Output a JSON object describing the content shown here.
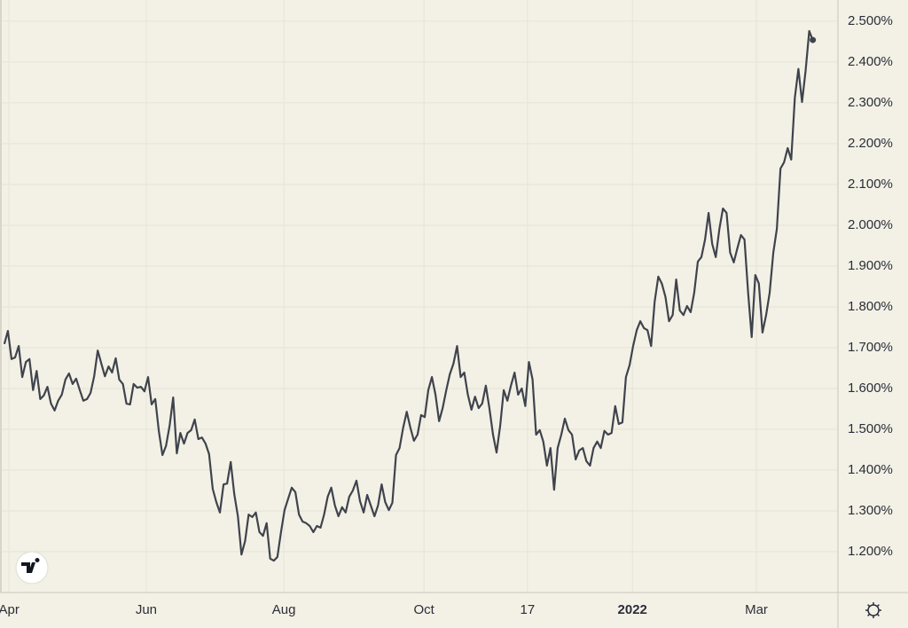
{
  "chart_data": {
    "type": "line",
    "series": [
      {
        "color": "#3f434d",
        "values": [
          1.709,
          1.741,
          1.672,
          1.676,
          1.704,
          1.628,
          1.665,
          1.672,
          1.596,
          1.643,
          1.574,
          1.583,
          1.604,
          1.563,
          1.546,
          1.57,
          1.585,
          1.622,
          1.637,
          1.611,
          1.624,
          1.596,
          1.57,
          1.574,
          1.589,
          1.63,
          1.693,
          1.661,
          1.63,
          1.654,
          1.639,
          1.674,
          1.622,
          1.611,
          1.563,
          1.561,
          1.611,
          1.602,
          1.604,
          1.593,
          1.628,
          1.561,
          1.574,
          1.496,
          1.437,
          1.459,
          1.509,
          1.578,
          1.441,
          1.491,
          1.465,
          1.491,
          1.498,
          1.524,
          1.476,
          1.48,
          1.465,
          1.439,
          1.354,
          1.322,
          1.296,
          1.365,
          1.367,
          1.42,
          1.341,
          1.287,
          1.193,
          1.226,
          1.291,
          1.285,
          1.296,
          1.248,
          1.239,
          1.27,
          1.183,
          1.178,
          1.187,
          1.248,
          1.302,
          1.33,
          1.357,
          1.346,
          1.291,
          1.274,
          1.27,
          1.263,
          1.248,
          1.263,
          1.259,
          1.291,
          1.335,
          1.357,
          1.313,
          1.287,
          1.309,
          1.296,
          1.335,
          1.35,
          1.374,
          1.324,
          1.296,
          1.339,
          1.313,
          1.287,
          1.313,
          1.365,
          1.322,
          1.302,
          1.32,
          1.437,
          1.454,
          1.504,
          1.543,
          1.504,
          1.472,
          1.487,
          1.535,
          1.53,
          1.596,
          1.628,
          1.585,
          1.52,
          1.552,
          1.596,
          1.635,
          1.661,
          1.704,
          1.628,
          1.639,
          1.585,
          1.548,
          1.58,
          1.552,
          1.563,
          1.607,
          1.552,
          1.487,
          1.443,
          1.509,
          1.596,
          1.57,
          1.607,
          1.639,
          1.585,
          1.6,
          1.557,
          1.665,
          1.622,
          1.487,
          1.498,
          1.47,
          1.411,
          1.454,
          1.352,
          1.454,
          1.487,
          1.526,
          1.498,
          1.487,
          1.426,
          1.448,
          1.454,
          1.422,
          1.411,
          1.454,
          1.47,
          1.454,
          1.496,
          1.487,
          1.491,
          1.557,
          1.513,
          1.517,
          1.628,
          1.657,
          1.704,
          1.743,
          1.765,
          1.748,
          1.743,
          1.704,
          1.813,
          1.874,
          1.857,
          1.824,
          1.765,
          1.78,
          1.867,
          1.791,
          1.78,
          1.802,
          1.787,
          1.835,
          1.911,
          1.922,
          1.965,
          2.03,
          1.954,
          1.922,
          1.991,
          2.041,
          2.03,
          1.933,
          1.909,
          1.943,
          1.976,
          1.965,
          1.835,
          1.726,
          1.878,
          1.857,
          1.737,
          1.78,
          1.835,
          1.933,
          1.991,
          2.139,
          2.154,
          2.189,
          2.161,
          2.313,
          2.383,
          2.302,
          2.378,
          2.476,
          2.454
        ]
      }
    ],
    "xlim": [
      -1.2,
      232
    ],
    "xticks": [
      {
        "value": 1.3,
        "label": "Apr"
      },
      {
        "value": 39.5,
        "label": "Jun"
      },
      {
        "value": 77.8,
        "label": "Aug"
      },
      {
        "value": 116.8,
        "label": "Oct"
      },
      {
        "value": 145.6,
        "label": "17"
      },
      {
        "value": 174.8,
        "label": "2022",
        "bold": true
      },
      {
        "value": 209.3,
        "label": "Mar"
      }
    ],
    "ylim": [
      1.1,
      2.552
    ],
    "yticks": [
      {
        "value": 1.2,
        "label": "1.200%"
      },
      {
        "value": 1.3,
        "label": "1.300%"
      },
      {
        "value": 1.4,
        "label": "1.400%"
      },
      {
        "value": 1.5,
        "label": "1.500%"
      },
      {
        "value": 1.6,
        "label": "1.600%"
      },
      {
        "value": 1.7,
        "label": "1.700%"
      },
      {
        "value": 1.8,
        "label": "1.800%"
      },
      {
        "value": 1.9,
        "label": "1.900%"
      },
      {
        "value": 2.0,
        "label": "2.000%"
      },
      {
        "value": 2.1,
        "label": "2.100%"
      },
      {
        "value": 2.2,
        "label": "2.200%"
      },
      {
        "value": 2.3,
        "label": "2.300%"
      },
      {
        "value": 2.4,
        "label": "2.400%"
      },
      {
        "value": 2.5,
        "label": "2.500%"
      }
    ],
    "grid": true
  }
}
